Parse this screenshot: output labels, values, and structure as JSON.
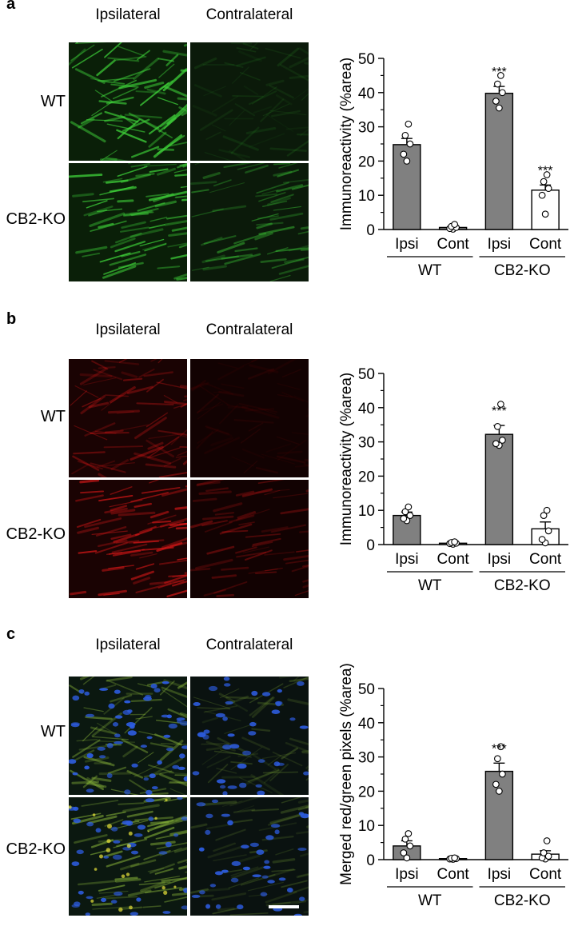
{
  "columns": [
    "Ipsilateral",
    "Contralateral"
  ],
  "rows": [
    "WT",
    "CB2-KO"
  ],
  "panels": [
    {
      "letter": "a",
      "stain": "green",
      "chart_data": {
        "type": "bar",
        "categories": [
          "Ipsi",
          "Cont",
          "Ipsi",
          "Cont"
        ],
        "groups": [
          "WT",
          "CB2-KO"
        ],
        "values": [
          24.8,
          0.6,
          39.8,
          11.5
        ],
        "errors": [
          1.8,
          0.3,
          2.0,
          1.5
        ],
        "points": [
          [
            20.0,
            22.0,
            25.0,
            27.5,
            30.8
          ],
          [
            0.1,
            0.3,
            0.6,
            0.9,
            1.5
          ],
          [
            35.5,
            37.5,
            40.0,
            42.5,
            45.0
          ],
          [
            4.5,
            10.0,
            12.0,
            14.0,
            16.0
          ]
        ],
        "bar_colors": [
          "#808080",
          "#808080",
          "#808080",
          "#ffffff"
        ],
        "significance": [
          "",
          "",
          "***",
          "***"
        ],
        "ylabel": "Immunoreactivity (%area)",
        "ylim": [
          0,
          50
        ],
        "yticks": [
          0,
          10,
          20,
          30,
          40,
          50
        ]
      }
    },
    {
      "letter": "b",
      "stain": "red",
      "chart_data": {
        "type": "bar",
        "categories": [
          "Ipsi",
          "Cont",
          "Ipsi",
          "Cont"
        ],
        "groups": [
          "WT",
          "CB2-KO"
        ],
        "values": [
          8.5,
          0.4,
          32.2,
          4.6
        ],
        "errors": [
          1.0,
          0.2,
          2.6,
          2.0
        ],
        "points": [
          [
            7.0,
            7.6,
            8.5,
            9.6,
            11.0
          ],
          [
            0.1,
            0.3,
            0.4,
            0.6,
            0.8
          ],
          [
            29.0,
            29.5,
            30.5,
            34.5,
            41.0
          ],
          [
            0.5,
            1.5,
            4.0,
            8.5,
            10.0
          ]
        ],
        "bar_colors": [
          "#808080",
          "#808080",
          "#808080",
          "#ffffff"
        ],
        "significance": [
          "",
          "",
          "***",
          ""
        ],
        "ylabel": "Immunoreactivity (%area)",
        "ylim": [
          0,
          50
        ],
        "yticks": [
          0,
          10,
          20,
          30,
          40,
          50
        ]
      }
    },
    {
      "letter": "c",
      "stain": "merged",
      "chart_data": {
        "type": "bar",
        "categories": [
          "Ipsi",
          "Cont",
          "Ipsi",
          "Cont"
        ],
        "groups": [
          "WT",
          "CB2-KO"
        ],
        "values": [
          4.0,
          0.3,
          25.8,
          1.6
        ],
        "errors": [
          1.5,
          0.2,
          2.4,
          1.0
        ],
        "points": [
          [
            0.5,
            2.0,
            4.0,
            6.0,
            7.6
          ],
          [
            0.1,
            0.2,
            0.3,
            0.4,
            0.5
          ],
          [
            20.0,
            22.0,
            25.0,
            29.5,
            33.0
          ],
          [
            0.2,
            0.5,
            1.0,
            2.0,
            5.5
          ]
        ],
        "bar_colors": [
          "#808080",
          "#808080",
          "#808080",
          "#ffffff"
        ],
        "significance": [
          "",
          "",
          "***",
          ""
        ],
        "ylabel": "Merged red/green pixels (%area)",
        "ylim": [
          0,
          50
        ],
        "yticks": [
          0,
          10,
          20,
          30,
          40,
          50
        ]
      }
    }
  ]
}
